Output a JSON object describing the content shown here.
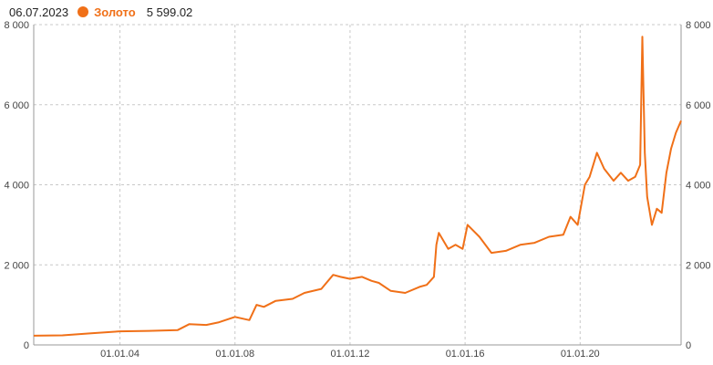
{
  "legend": {
    "date": "06.07.2023",
    "series_name": "Золото",
    "value": "5 599.02"
  },
  "colors": {
    "series": "#f07018",
    "grid": "#c8c8c8",
    "axis": "#999999"
  },
  "chart_data": {
    "type": "line",
    "xlim": [
      "2001-01-01",
      "2023-07-06"
    ],
    "ylim": [
      0,
      8000
    ],
    "y_ticks": [
      0,
      2000,
      4000,
      6000,
      8000
    ],
    "y_tick_labels": [
      "0",
      "2 000",
      "4 000",
      "6 000",
      "8 000"
    ],
    "x_ticks": [
      "2004-01-01",
      "2008-01-01",
      "2012-01-01",
      "2016-01-01",
      "2020-01-01"
    ],
    "x_tick_labels": [
      "01.01.04",
      "01.01.08",
      "01.01.12",
      "01.01.16",
      "01.01.20"
    ],
    "grid": true,
    "series": [
      {
        "name": "Золото",
        "x": [
          "2001-01-01",
          "2002-01-01",
          "2003-01-01",
          "2004-01-01",
          "2005-01-01",
          "2006-01-01",
          "2006-06-01",
          "2007-01-01",
          "2007-06-01",
          "2008-01-01",
          "2008-07-01",
          "2008-10-01",
          "2009-01-01",
          "2009-06-01",
          "2010-01-01",
          "2010-06-01",
          "2011-01-01",
          "2011-06-01",
          "2011-09-01",
          "2012-01-01",
          "2012-06-01",
          "2012-10-01",
          "2013-01-01",
          "2013-06-01",
          "2013-12-01",
          "2014-06-01",
          "2014-09-01",
          "2014-12-01",
          "2015-01-01",
          "2015-02-01",
          "2015-06-01",
          "2015-09-01",
          "2015-12-01",
          "2016-02-01",
          "2016-07-01",
          "2016-12-01",
          "2017-06-01",
          "2017-12-01",
          "2018-06-01",
          "2018-12-01",
          "2019-06-01",
          "2019-09-01",
          "2019-12-01",
          "2020-03-01",
          "2020-05-01",
          "2020-08-01",
          "2020-11-01",
          "2021-03-01",
          "2021-06-01",
          "2021-09-01",
          "2021-12-01",
          "2022-02-01",
          "2022-03-01",
          "2022-04-01",
          "2022-05-01",
          "2022-07-01",
          "2022-09-01",
          "2022-11-01",
          "2023-01-01",
          "2023-03-01",
          "2023-05-01",
          "2023-07-06"
        ],
        "values": [
          230,
          240,
          290,
          340,
          350,
          370,
          520,
          500,
          560,
          700,
          620,
          1000,
          950,
          1100,
          1150,
          1300,
          1400,
          1750,
          1700,
          1650,
          1700,
          1600,
          1550,
          1350,
          1300,
          1450,
          1500,
          1700,
          2500,
          2800,
          2400,
          2500,
          2400,
          3000,
          2700,
          2300,
          2350,
          2500,
          2550,
          2700,
          2750,
          3200,
          3000,
          4000,
          4200,
          4800,
          4400,
          4100,
          4300,
          4100,
          4200,
          4500,
          7700,
          4800,
          3700,
          3000,
          3400,
          3300,
          4300,
          4900,
          5300,
          5599.02
        ]
      }
    ]
  }
}
